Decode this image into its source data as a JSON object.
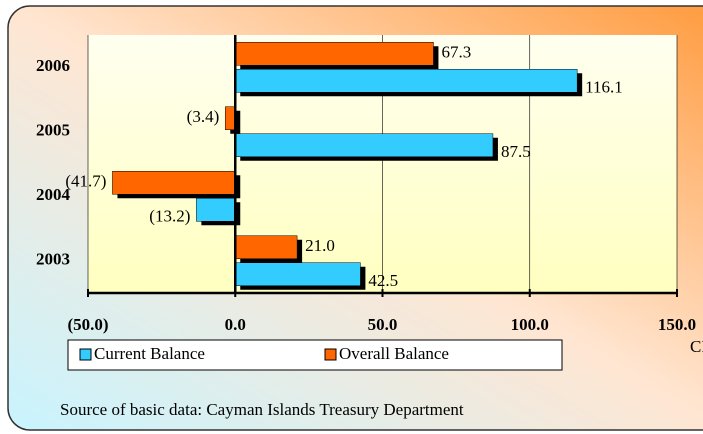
{
  "chart_data": {
    "type": "bar",
    "orientation": "horizontal",
    "categories": [
      "2006",
      "2005",
      "2004",
      "2003"
    ],
    "series": [
      {
        "name": "Overall Balance",
        "color": "#ff6600",
        "values": [
          67.3,
          -3.4,
          -41.7,
          21.0
        ],
        "value_labels": [
          "67.3",
          "(3.4)",
          "(41.7)",
          "21.0"
        ]
      },
      {
        "name": "Current Balance",
        "color": "#33ccff",
        "values": [
          116.1,
          87.5,
          -13.2,
          42.5
        ],
        "value_labels": [
          "116.1",
          "87.5",
          "(13.2)",
          "42.5"
        ]
      }
    ],
    "legend_order": [
      1,
      0
    ],
    "xlim": [
      -50,
      150
    ],
    "xticks": [
      {
        "value": -50,
        "label": "(50.0)"
      },
      {
        "value": 0,
        "label": "0.0"
      },
      {
        "value": 50,
        "label": "50.0"
      },
      {
        "value": 100,
        "label": "100.0"
      },
      {
        "value": 150,
        "label": "150.0"
      }
    ],
    "x_label": "CI$ m",
    "grid": true,
    "source": "Source of basic data: Cayman Islands Treasury Department"
  }
}
